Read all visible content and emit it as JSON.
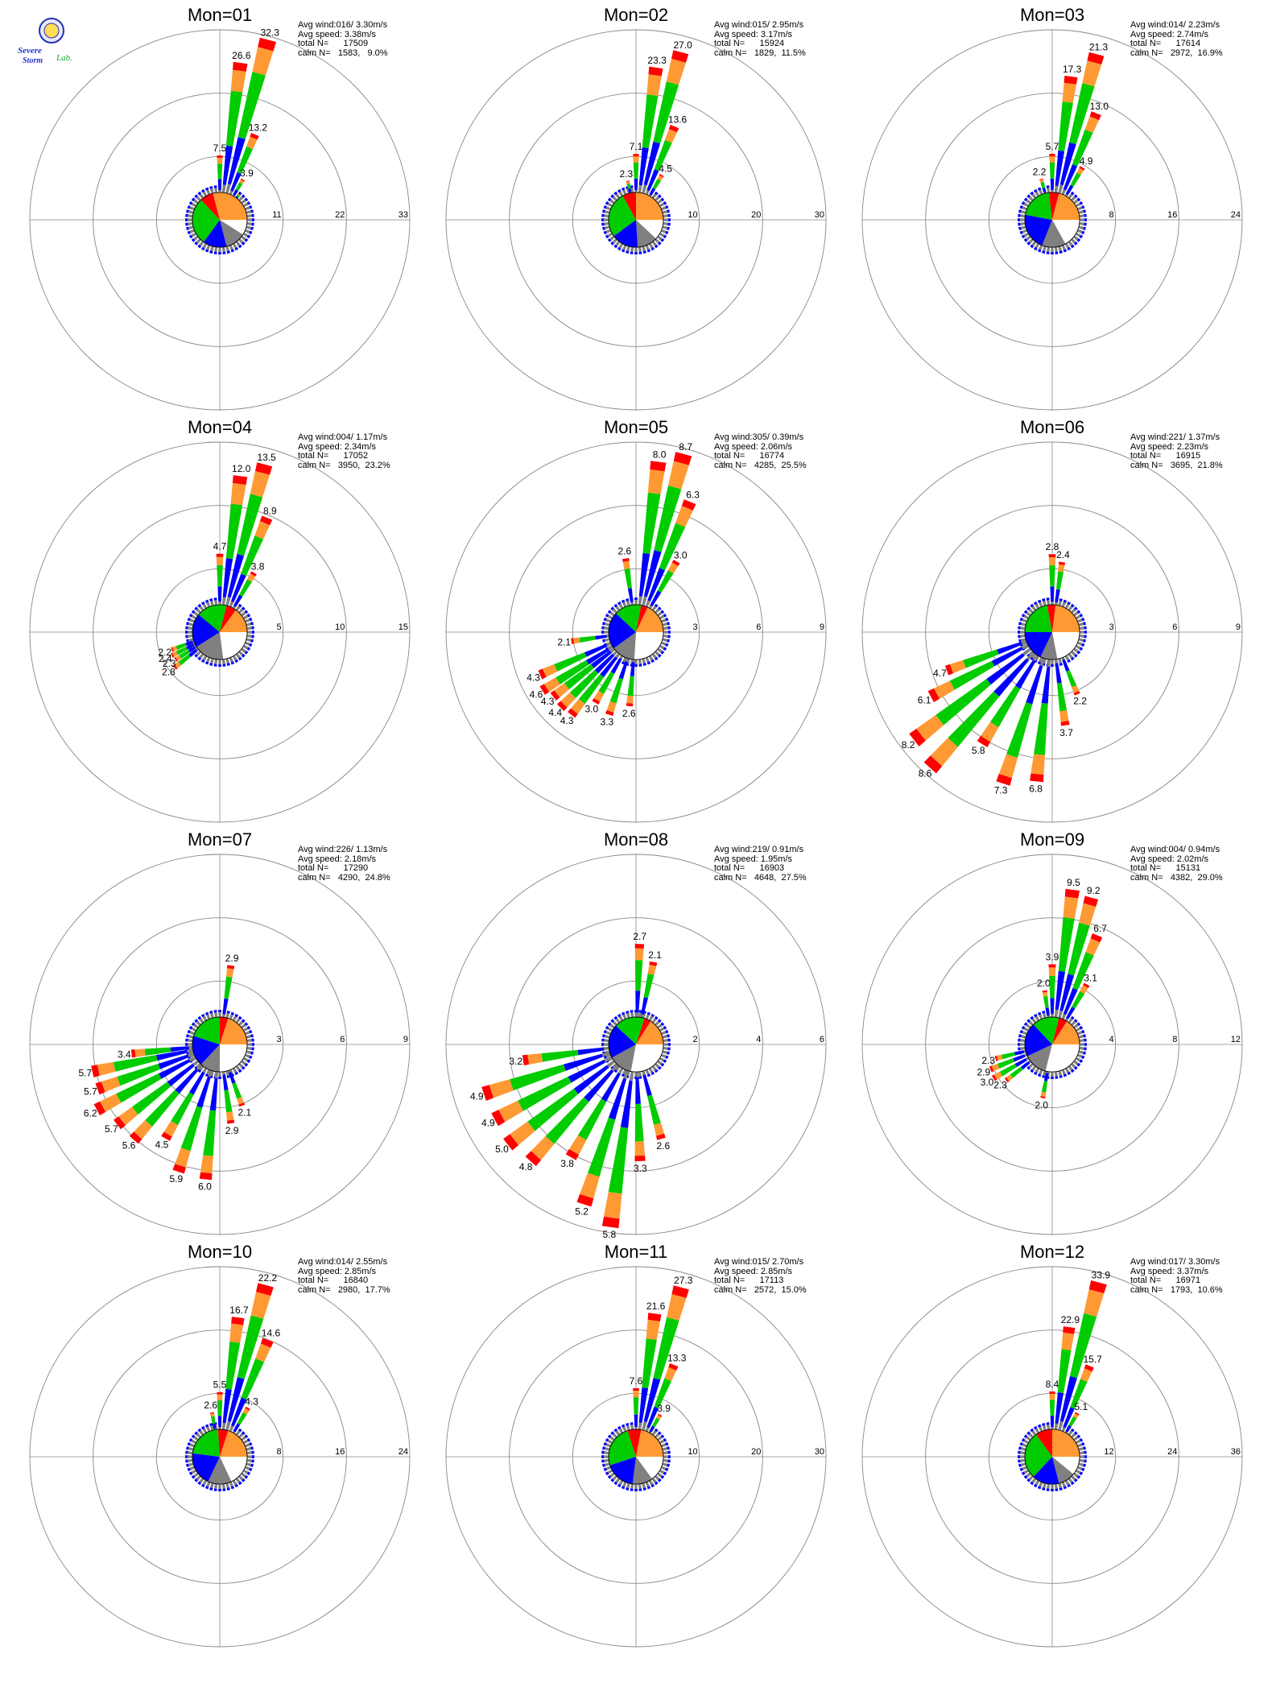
{
  "colors": {
    "calm": "#ffffff",
    "speed_bin_1": "#808080",
    "speed_bin_2": "#0000ff",
    "speed_bin_3": "#00cc00",
    "speed_bin_4": "#ff9933",
    "speed_bin_5": "#ff0000",
    "grid": "#888888"
  },
  "logo": {
    "text": "Severe Storm Lab."
  },
  "chart_data": [
    {
      "type": "polar-bar",
      "title": "Mon=01",
      "stats": {
        "avg_wind": "Avg wind:016/ 3.30m/s",
        "avg_speed": "Avg speed: 3.38m/s",
        "total": "total N=      17509",
        "calm": "calm N=   1583,   9.0%"
      },
      "rings": [
        "11",
        "22",
        "33"
      ],
      "rmax": 33,
      "directions_deg": [
        0,
        7.5,
        15,
        22.5,
        30,
        37.5
      ],
      "values": [
        7.5,
        26.6,
        32.3,
        13.2,
        3.9,
        1.0
      ],
      "labels": [
        "7.5",
        "26.6",
        "32.3",
        "13.2",
        "3.9",
        ""
      ],
      "pie": [
        9,
        12,
        14,
        28,
        8,
        29
      ]
    },
    {
      "type": "polar-bar",
      "title": "Mon=02",
      "stats": {
        "avg_wind": "Avg wind:015/ 2.95m/s",
        "avg_speed": "Avg speed: 3.17m/s",
        "total": "total N=      15924",
        "calm": "calm N=   1829,  11.5%"
      },
      "rings": [
        "10",
        "20",
        "30"
      ],
      "rmax": 30,
      "directions_deg": [
        -12,
        0,
        7.5,
        15,
        22.5,
        30
      ],
      "values": [
        2.3,
        7.1,
        23.3,
        27.0,
        13.6,
        4.5
      ],
      "labels": [
        "2.3",
        "7.1",
        "23.3",
        "27.0",
        "13.6",
        "4.5"
      ],
      "pie": [
        12,
        12,
        16,
        27,
        8,
        25
      ]
    },
    {
      "type": "polar-bar",
      "title": "Mon=03",
      "stats": {
        "avg_wind": "Avg wind:014/ 2.23m/s",
        "avg_speed": "Avg speed: 2.74m/s",
        "total": "total N=      17614",
        "calm": "calm N=   2972,  16.9%"
      },
      "rings": [
        "8",
        "16",
        "24"
      ],
      "rmax": 24,
      "directions_deg": [
        -15,
        0,
        7.5,
        15,
        22.5,
        30
      ],
      "values": [
        2.2,
        5.7,
        17.3,
        21.3,
        13.0,
        4.9
      ],
      "labels": [
        "2.2",
        "5.7",
        "17.3",
        "21.3",
        "13.0",
        "4.9"
      ],
      "pie": [
        17,
        14,
        22,
        20,
        6,
        21
      ]
    },
    {
      "type": "polar-bar",
      "title": "Mon=04",
      "stats": {
        "avg_wind": "Avg wind:004/ 1.17m/s",
        "avg_speed": "Avg speed: 2.34m/s",
        "total": "total N=      17052",
        "calm": "calm N=   3950,  23.2%"
      },
      "rings": [
        "5",
        "10",
        "15"
      ],
      "rmax": 15,
      "directions_deg": [
        0,
        7.5,
        15,
        22.5,
        30,
        232,
        238,
        244,
        250
      ],
      "values": [
        4.7,
        12.0,
        13.5,
        8.9,
        3.8,
        2.8,
        2.3,
        2.4,
        2.2
      ],
      "labels": [
        "4.7",
        "12.0",
        "13.5",
        "8.9",
        "3.8",
        "2.8",
        "2.3",
        "2.4",
        "2.2"
      ],
      "pie": [
        23,
        18,
        20,
        18,
        6,
        15
      ]
    },
    {
      "type": "polar-bar",
      "title": "Mon=05",
      "stats": {
        "avg_wind": "Avg wind:305/ 0.39m/s",
        "avg_speed": "Avg speed: 2.06m/s",
        "total": "total N=      16774",
        "calm": "calm N=   4285,  25.5%"
      },
      "rings": [
        "3",
        "6",
        "9"
      ],
      "rmax": 9,
      "directions_deg": [
        -8,
        7.5,
        15,
        22.5,
        30,
        185,
        198,
        210,
        218,
        225,
        232,
        238,
        246,
        262
      ],
      "values": [
        2.6,
        8.0,
        8.7,
        6.3,
        3.0,
        2.6,
        3.3,
        3.0,
        4.3,
        4.4,
        4.3,
        4.6,
        4.3,
        2.1
      ],
      "labels": [
        "2.6",
        "8.0",
        "8.7",
        "6.3",
        "3.0",
        "2.6",
        "3.3",
        "3.0",
        "4.3",
        "4.4",
        "4.3",
        "4.6",
        "4.3",
        "2.1"
      ],
      "pie": [
        26,
        14,
        22,
        16,
        4,
        18
      ]
    },
    {
      "type": "polar-bar",
      "title": "Mon=06",
      "stats": {
        "avg_wind": "Avg wind:221/ 1.37m/s",
        "avg_speed": "Avg speed: 2.23m/s",
        "total": "total N=      16915",
        "calm": "calm N=   3695,  21.8%"
      },
      "rings": [
        "3",
        "6",
        "9"
      ],
      "rmax": 9,
      "directions_deg": [
        0,
        8,
        158,
        172,
        186,
        198,
        212,
        222,
        232,
        242,
        250
      ],
      "values": [
        2.8,
        2.4,
        2.2,
        3.7,
        6.8,
        7.3,
        5.8,
        8.6,
        8.2,
        6.1,
        4.7
      ],
      "labels": [
        "2.8",
        "2.4",
        "2.2",
        "3.7",
        "6.8",
        "7.3",
        "5.8",
        "8.6",
        "8.2",
        "6.1",
        "4.7"
      ],
      "pie": [
        22,
        10,
        18,
        22,
        5,
        23
      ]
    },
    {
      "type": "polar-bar",
      "title": "Mon=07",
      "stats": {
        "avg_wind": "Avg wind:226/ 1.13m/s",
        "avg_speed": "Avg speed: 2.18m/s",
        "total": "total N=      17290",
        "calm": "calm N=   4290,  24.8%"
      },
      "rings": [
        "3",
        "6",
        "9"
      ],
      "rmax": 9,
      "directions_deg": [
        8,
        160,
        172,
        186,
        198,
        210,
        222,
        232,
        242,
        250,
        258,
        264
      ],
      "values": [
        2.9,
        2.1,
        2.9,
        6.0,
        5.9,
        4.5,
        5.6,
        5.7,
        6.2,
        5.7,
        5.7,
        3.4
      ],
      "labels": [
        "2.9",
        "2.1",
        "2.9",
        "6.0",
        "5.9",
        "4.5",
        "5.6",
        "5.7",
        "6.2",
        "5.7",
        "5.7",
        "3.4"
      ],
      "pie": [
        25,
        12,
        18,
        20,
        5,
        20
      ]
    },
    {
      "type": "polar-bar",
      "title": "Mon=08",
      "stats": {
        "avg_wind": "Avg wind:219/ 0.91m/s",
        "avg_speed": "Avg speed: 1.95m/s",
        "total": "total N=      16903",
        "calm": "calm N=   4648,  27.5%"
      },
      "rings": [
        "2",
        "4",
        "6"
      ],
      "rmax": 6,
      "directions_deg": [
        2,
        12,
        165,
        178,
        188,
        198,
        210,
        222,
        232,
        242,
        252,
        262
      ],
      "values": [
        2.7,
        2.1,
        2.6,
        3.3,
        5.8,
        5.2,
        3.8,
        4.8,
        5.0,
        4.9,
        4.9,
        3.2
      ],
      "labels": [
        "2.7",
        "2.1",
        "2.6",
        "3.3",
        "5.8",
        "5.2",
        "3.8",
        "4.8",
        "5.0",
        "4.9",
        "4.9",
        "3.2"
      ],
      "pie": [
        28,
        14,
        20,
        18,
        4,
        16
      ]
    },
    {
      "type": "polar-bar",
      "title": "Mon=09",
      "stats": {
        "avg_wind": "Avg wind:004/ 0.94m/s",
        "avg_speed": "Avg speed: 2.02m/s",
        "total": "total N=      15131",
        "calm": "calm N=   4382,  29.0%"
      },
      "rings": [
        "4",
        "8",
        "12"
      ],
      "rmax": 12,
      "directions_deg": [
        -8,
        0,
        7.5,
        15,
        22.5,
        30,
        190,
        232,
        240,
        248,
        256
      ],
      "values": [
        2.0,
        3.9,
        9.5,
        9.2,
        6.7,
        3.1,
        2.0,
        2.3,
        3.0,
        2.9,
        2.3
      ],
      "labels": [
        "2.0",
        "3.9",
        "9.5",
        "9.2",
        "6.7",
        "3.1",
        "2.0",
        "2.3",
        "3.0",
        "2.9",
        "2.3"
      ],
      "pie": [
        29,
        14,
        20,
        16,
        5,
        16
      ]
    },
    {
      "type": "polar-bar",
      "title": "Mon=10",
      "stats": {
        "avg_wind": "Avg wind:014/ 2.55m/s",
        "avg_speed": "Avg speed: 2.85m/s",
        "total": "total N=      16840",
        "calm": "calm N=   2980,  17.7%"
      },
      "rings": [
        "8",
        "16",
        "24"
      ],
      "rmax": 24,
      "directions_deg": [
        -10,
        0,
        7.5,
        15,
        22.5,
        30
      ],
      "values": [
        2.6,
        5.5,
        16.7,
        22.2,
        14.6,
        4.3
      ],
      "labels": [
        "2.6",
        "5.5",
        "16.7",
        "22.2",
        "14.6",
        "4.3"
      ],
      "pie": [
        18,
        14,
        20,
        22,
        6,
        20
      ]
    },
    {
      "type": "polar-bar",
      "title": "Mon=11",
      "stats": {
        "avg_wind": "Avg wind:015/ 2.70m/s",
        "avg_speed": "Avg speed: 2.85m/s",
        "total": "total N=      17113",
        "calm": "calm N=   2572,  15.0%"
      },
      "rings": [
        "10",
        "20",
        "30"
      ],
      "rmax": 30,
      "directions_deg": [
        0,
        7.5,
        15,
        22.5,
        30
      ],
      "values": [
        7.6,
        21.6,
        27.3,
        13.3,
        3.9
      ],
      "labels": [
        "7.6",
        "21.6",
        "27.3",
        "13.3",
        "3.9"
      ],
      "pie": [
        15,
        12,
        18,
        25,
        8,
        22
      ]
    },
    {
      "type": "polar-bar",
      "title": "Mon=12",
      "stats": {
        "avg_wind": "Avg wind:017/ 3.30m/s",
        "avg_speed": "Avg speed: 3.37m/s",
        "total": "total N=      16971",
        "calm": "calm N=   1793,  10.6%"
      },
      "rings": [
        "12",
        "24",
        "36"
      ],
      "rmax": 36,
      "directions_deg": [
        0,
        7.5,
        15,
        22.5,
        30
      ],
      "values": [
        8.4,
        22.9,
        33.9,
        15.7,
        5.1
      ],
      "labels": [
        "8.4",
        "22.9",
        "33.9",
        "15.7",
        "5.1"
      ],
      "pie": [
        11,
        10,
        16,
        28,
        10,
        25
      ]
    }
  ]
}
